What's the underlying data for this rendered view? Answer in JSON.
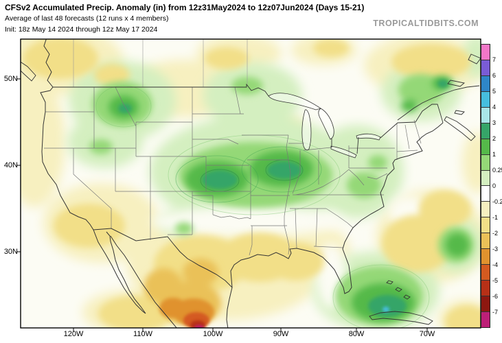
{
  "header": {
    "title": "CFSv2 Accumulated Precip. Anomaly (in) from 12z31May2024 to 12z07Jun2024 (Days 15-21)",
    "subtitle": "Average of last 48 forecasts (12 runs x 4 members)",
    "init_line": "Init: 18z May 14 2024 through 12z May 17 2024",
    "watermark": "TROPICALTIDBITS.COM"
  },
  "axes": {
    "lat_labels": [
      "50N",
      "40N",
      "30N"
    ],
    "lon_labels": [
      "120W",
      "110W",
      "100W",
      "90W",
      "80W",
      "70W"
    ]
  },
  "colorbar": {
    "tick_labels": [
      "7",
      "6",
      "5",
      "4",
      "3",
      "2",
      "1",
      "0.25",
      "0",
      "-0.25",
      "-1",
      "-2",
      "-3",
      "-4",
      "-5",
      "-6",
      "-7"
    ],
    "colors": [
      "#f277c8",
      "#7a5cd6",
      "#2e86c8",
      "#46bede",
      "#a9e6e8",
      "#35a568",
      "#55b94a",
      "#94d877",
      "#d4efc0",
      "#ffffff",
      "#f7f0c0",
      "#f2df88",
      "#eac158",
      "#e0922e",
      "#d45a20",
      "#b73017",
      "#8e1710",
      "#bd1f77"
    ]
  },
  "map": {
    "base_color": "#fcfcf4",
    "coast_color": "#333333",
    "state_border_color": "#777777",
    "province_border_color": "#999999"
  }
}
